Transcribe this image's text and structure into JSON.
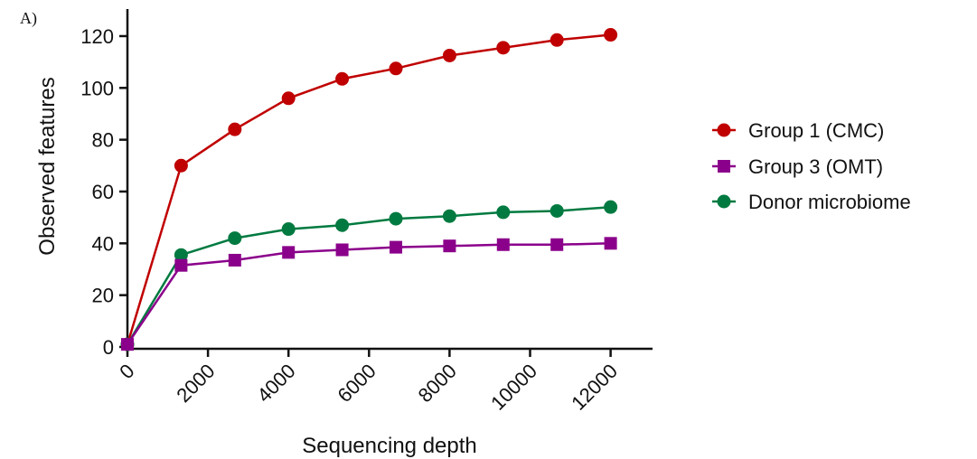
{
  "panel_label": "A)",
  "chart_data": {
    "type": "line",
    "xlabel": "Sequencing depth",
    "ylabel": "Observed features",
    "xlim": [
      0,
      13000
    ],
    "ylim": [
      0,
      130
    ],
    "x_ticks": [
      0,
      2000,
      4000,
      6000,
      8000,
      10000,
      12000
    ],
    "y_ticks": [
      0,
      20,
      40,
      60,
      80,
      100,
      120
    ],
    "grid": false,
    "legend_position": "right",
    "series": [
      {
        "name": "Group 1 (CMC)",
        "color": "#c00000",
        "marker": "circle",
        "x": [
          0,
          1333,
          2667,
          4000,
          5333,
          6667,
          8000,
          9333,
          10667,
          12000
        ],
        "y": [
          1,
          70,
          84,
          96,
          103.5,
          107.5,
          112.5,
          115.5,
          118.5,
          120.5
        ]
      },
      {
        "name": "Group 3 (OMT)",
        "color": "#8b008b",
        "marker": "square",
        "x": [
          0,
          1333,
          2667,
          4000,
          5333,
          6667,
          8000,
          9333,
          10667,
          12000
        ],
        "y": [
          1,
          31.5,
          33.5,
          36.5,
          37.5,
          38.5,
          39,
          39.5,
          39.5,
          40
        ]
      },
      {
        "name": "Donor microbiome",
        "color": "#007a40",
        "marker": "circle",
        "x": [
          0,
          1333,
          2667,
          4000,
          5333,
          6667,
          8000,
          9333,
          10667,
          12000
        ],
        "y": [
          1,
          35.5,
          42,
          45.5,
          47,
          49.5,
          50.5,
          52,
          52.5,
          54
        ]
      }
    ]
  }
}
